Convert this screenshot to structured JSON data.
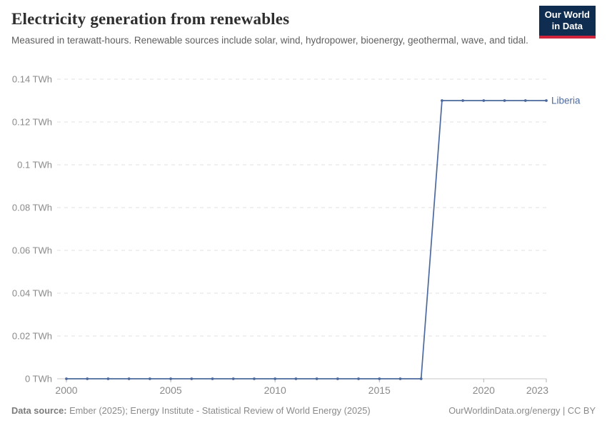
{
  "header": {
    "title": "Electricity generation from renewables",
    "subtitle": "Measured in terawatt-hours. Renewable sources include solar, wind, hydropower, bioenergy, geothermal, wave, and tidal.",
    "logo": {
      "line1": "Our World",
      "line2": "in Data",
      "bg_color": "#0f2d50",
      "accent_color": "#d0243c"
    }
  },
  "footer": {
    "source_label": "Data source:",
    "source_text": " Ember (2025); Energy Institute - Statistical Review of World Energy (2025)",
    "right_text": "OurWorldinData.org/energy | CC BY"
  },
  "chart_data": {
    "type": "line",
    "title": "Electricity generation from renewables",
    "unit": "TWh",
    "x": [
      2000,
      2001,
      2002,
      2003,
      2004,
      2005,
      2006,
      2007,
      2008,
      2009,
      2010,
      2011,
      2012,
      2013,
      2014,
      2015,
      2016,
      2017,
      2018,
      2019,
      2020,
      2021,
      2022,
      2023
    ],
    "series": [
      {
        "name": "Liberia",
        "color": "#4c6a9e",
        "values": [
          0,
          0,
          0,
          0,
          0,
          0,
          0,
          0,
          0,
          0,
          0,
          0,
          0,
          0,
          0,
          0,
          0,
          0,
          0.13,
          0.13,
          0.13,
          0.13,
          0.13,
          0.13
        ]
      }
    ],
    "xlim": [
      2000,
      2023
    ],
    "ylim": [
      0,
      0.14
    ],
    "x_ticks": [
      2000,
      2005,
      2010,
      2015,
      2020,
      2023
    ],
    "y_ticks": [
      0,
      0.02,
      0.04,
      0.06,
      0.08,
      0.1,
      0.12,
      0.14
    ],
    "y_tick_unit": " TWh",
    "grid": "horizontal-dashed",
    "legend_position": "end-of-line-label",
    "end_label": "Liberia"
  }
}
